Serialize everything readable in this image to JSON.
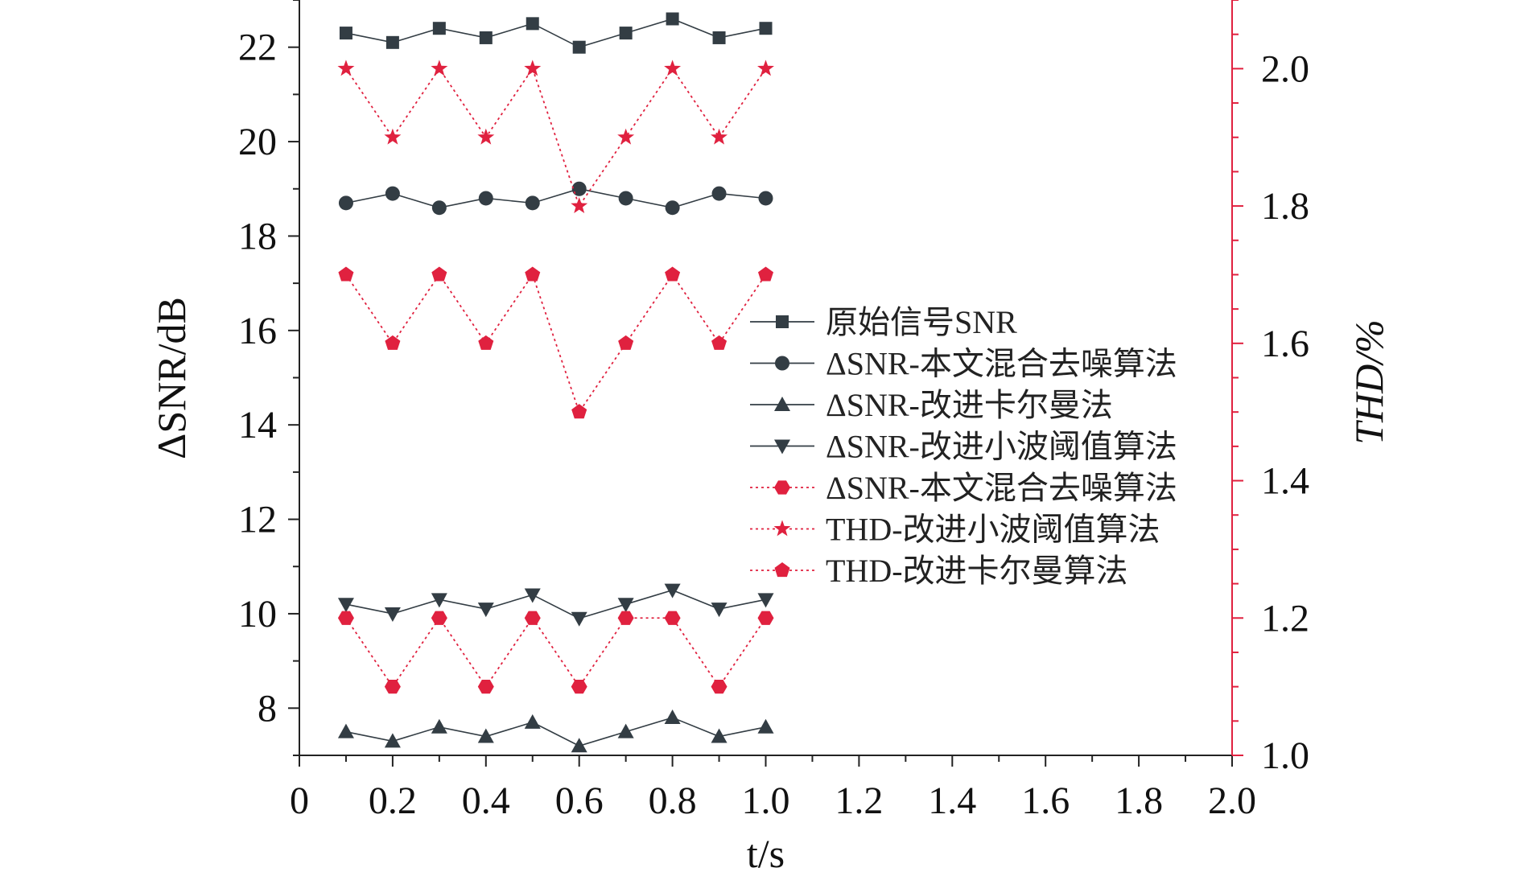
{
  "chart_data": {
    "type": "line",
    "xlabel": "t/s",
    "ylabel_left": "ΔSNR/dB",
    "ylabel_right": "THD/%",
    "xlim": [
      0,
      2.0
    ],
    "ylim_left": [
      7,
      23
    ],
    "ylim_right": [
      1.0,
      2.1
    ],
    "x_ticks": [
      "0",
      "0.2",
      "0.4",
      "0.6",
      "0.8",
      "1.0",
      "1.2",
      "1.4",
      "1.6",
      "1.8",
      "2.0"
    ],
    "y_left_ticks": [
      "8",
      "10",
      "12",
      "14",
      "16",
      "18",
      "20",
      "22"
    ],
    "y_right_ticks": [
      "1.0",
      "1.2",
      "1.4",
      "1.6",
      "1.8",
      "2.0"
    ],
    "grid": false,
    "legend_position": "center-right",
    "x": [
      0.1,
      0.2,
      0.3,
      0.4,
      0.5,
      0.6,
      0.7,
      0.8,
      0.9,
      1.0
    ],
    "colors": {
      "dark": "#333d44",
      "red": "#e0213f"
    },
    "series": [
      {
        "name": "原始信号SNR",
        "axis": "left",
        "marker": "square",
        "color": "#333d44",
        "line": "solid",
        "values": [
          22.3,
          22.1,
          22.4,
          22.2,
          22.5,
          22.0,
          22.3,
          22.6,
          22.2,
          22.4
        ]
      },
      {
        "name": "ΔSNR-本文混合去噪算法",
        "axis": "left",
        "marker": "circle",
        "color": "#333d44",
        "line": "solid",
        "values": [
          18.7,
          18.9,
          18.6,
          18.8,
          18.7,
          19.0,
          18.8,
          18.6,
          18.9,
          18.8
        ]
      },
      {
        "name": "ΔSNR-改进卡尔曼法",
        "axis": "left",
        "marker": "triangle-up",
        "color": "#333d44",
        "line": "solid",
        "values": [
          7.5,
          7.3,
          7.6,
          7.4,
          7.7,
          7.2,
          7.5,
          7.8,
          7.4,
          7.6
        ]
      },
      {
        "name": "ΔSNR-改进小波阈值算法",
        "axis": "left",
        "marker": "triangle-down",
        "color": "#333d44",
        "line": "solid",
        "values": [
          10.2,
          10.0,
          10.3,
          10.1,
          10.4,
          9.9,
          10.2,
          10.5,
          10.1,
          10.3
        ]
      },
      {
        "name": "ΔSNR-本文混合去噪算法",
        "axis": "right",
        "marker": "hexagon",
        "color": "#e0213f",
        "line": "dotted",
        "values": [
          1.2,
          1.1,
          1.2,
          1.1,
          1.2,
          1.1,
          1.2,
          1.2,
          1.1,
          1.2
        ]
      },
      {
        "name": "THD-改进小波阈值算法",
        "axis": "right",
        "marker": "star",
        "color": "#e0213f",
        "line": "dotted",
        "values": [
          2.0,
          1.9,
          2.0,
          1.9,
          2.0,
          1.8,
          1.9,
          2.0,
          1.9,
          2.0
        ]
      },
      {
        "name": "THD-改进卡尔曼算法",
        "axis": "right",
        "marker": "pentagon",
        "color": "#e0213f",
        "line": "dotted",
        "values": [
          1.7,
          1.6,
          1.7,
          1.6,
          1.7,
          1.5,
          1.6,
          1.7,
          1.6,
          1.7
        ]
      }
    ]
  }
}
